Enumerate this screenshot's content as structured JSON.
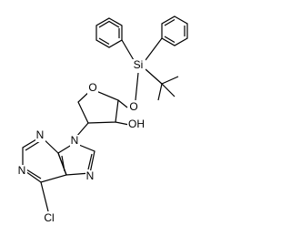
{
  "atoms": [
    "Si",
    "O",
    "O",
    "OH",
    "N",
    "N",
    "N",
    "N",
    "Cl"
  ]
}
